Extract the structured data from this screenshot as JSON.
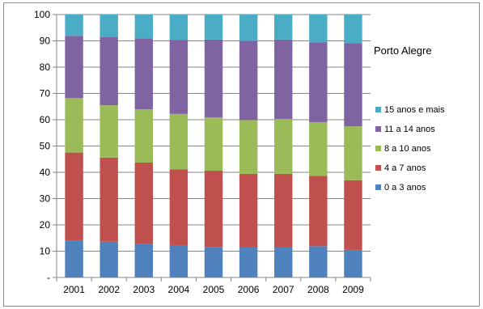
{
  "chart_data": {
    "type": "bar",
    "stacked": true,
    "title": "Porto Alegre",
    "categories": [
      "2001",
      "2002",
      "2003",
      "2004",
      "2005",
      "2006",
      "2007",
      "2008",
      "2009"
    ],
    "ylim": [
      0,
      100
    ],
    "y_ticks": [
      "-",
      "10",
      "20",
      "30",
      "40",
      "50",
      "60",
      "70",
      "80",
      "90",
      "100"
    ],
    "grid": true,
    "legend_position": "right",
    "series": [
      {
        "name": "0 a 3 anos",
        "color": "#4f81bd",
        "values": [
          13.9,
          13.6,
          12.8,
          12.3,
          11.6,
          11.4,
          11.4,
          11.9,
          10.5
        ]
      },
      {
        "name": "4 a 7 anos",
        "color": "#c0504d",
        "values": [
          33.6,
          32.0,
          30.9,
          28.8,
          29.0,
          28.0,
          28.0,
          26.7,
          26.5
        ]
      },
      {
        "name": "8 a 10 anos",
        "color": "#9bbb59",
        "values": [
          20.7,
          19.9,
          20.3,
          21.1,
          20.3,
          20.5,
          20.9,
          20.5,
          20.5
        ]
      },
      {
        "name": "11 a 14 anos",
        "color": "#8064a2",
        "values": [
          23.7,
          26.0,
          27.0,
          28.2,
          29.6,
          30.1,
          30.2,
          30.3,
          31.6
        ]
      },
      {
        "name": "15 anos e mais",
        "color": "#4bacc6",
        "values": [
          8.1,
          8.5,
          9.0,
          9.6,
          9.5,
          10.0,
          9.5,
          10.6,
          10.9
        ]
      }
    ]
  }
}
